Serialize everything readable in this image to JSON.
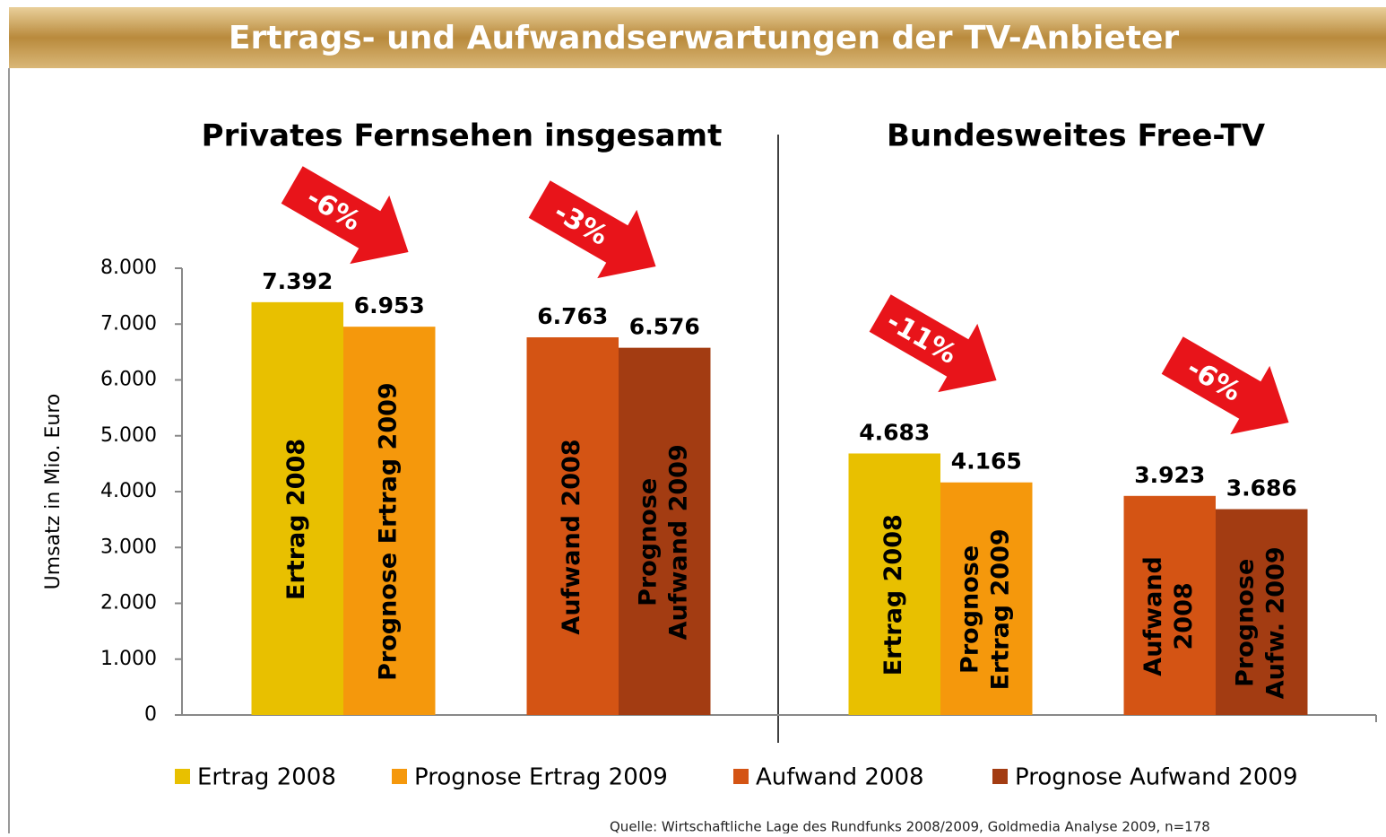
{
  "chart_data": {
    "type": "bar",
    "title": "Ertrags- und Aufwandserwartungen der TV-Anbieter",
    "y_label": "Umsatz in Mio. Euro",
    "categories": [
      "Privates Fernsehen insgesamt",
      "Bundesweites Free-TV"
    ],
    "series": [
      {
        "name": "Ertrag 2008",
        "color": "#e8c000",
        "values": [
          7392,
          4683
        ],
        "value_labels": [
          "7.392",
          "4.683"
        ],
        "bar_labels": [
          [
            "Ertrag 2008"
          ],
          [
            "Ertrag 2008"
          ]
        ]
      },
      {
        "name": "Prognose Ertrag 2009",
        "color": "#f5980c",
        "values": [
          6953,
          4165
        ],
        "value_labels": [
          "6.953",
          "4.165"
        ],
        "bar_labels": [
          [
            "Prognose Ertrag 2009"
          ],
          [
            "Prognose",
            "Ertrag 2009"
          ]
        ]
      },
      {
        "name": "Aufwand 2008",
        "color": "#d45414",
        "values": [
          6763,
          3923
        ],
        "value_labels": [
          "6.763",
          "3.923"
        ],
        "bar_labels": [
          [
            "Aufwand 2008"
          ],
          [
            "Aufwand",
            "2008"
          ]
        ]
      },
      {
        "name": "Prognose Aufwand 2009",
        "color": "#a33c12",
        "values": [
          6576,
          3686
        ],
        "value_labels": [
          "6.576",
          "3.686"
        ],
        "bar_labels": [
          [
            "Prognose",
            "Aufwand 2009"
          ],
          [
            "Prognose",
            "Aufw. 2009"
          ]
        ]
      }
    ],
    "ylim": [
      0,
      8000
    ],
    "yticks": [
      0,
      {
        "value": 1000,
        "label": "1.000"
      },
      {
        "value": 2000,
        "label": "2.000"
      },
      {
        "value": 3000,
        "label": "3.000"
      },
      {
        "value": 4000,
        "label": "4.000"
      },
      {
        "value": 5000,
        "label": "5.000"
      },
      {
        "value": 6000,
        "label": "6.000"
      },
      {
        "value": 7000,
        "label": "7.000"
      },
      {
        "value": 8000,
        "label": "8.000"
      }
    ],
    "annotations": [
      "-6%",
      "-3%",
      "-11%",
      "-6%"
    ],
    "source": "Quelle: Wirtschaftliche Lage des Rundfunks 2008/2009, Goldmedia Analyse 2009, n=178",
    "legend": "bottom"
  }
}
